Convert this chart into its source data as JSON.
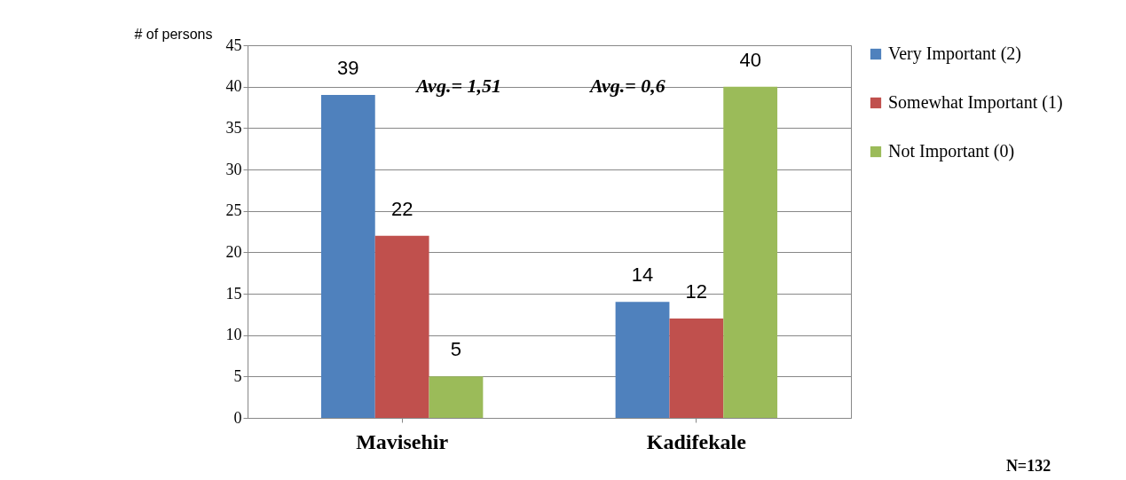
{
  "chart_data": {
    "type": "bar",
    "ylabel": "# of persons",
    "categories": [
      "Mavisehir",
      "Kadifekale"
    ],
    "series": [
      {
        "name": "Very Important (2)",
        "color": "#4f81bd",
        "values": [
          39,
          14
        ]
      },
      {
        "name": "Somewhat Important (1)",
        "color": "#c0504d",
        "values": [
          22,
          12
        ]
      },
      {
        "name": "Not Important (0)",
        "color": "#9bbb59",
        "values": [
          5,
          40
        ]
      }
    ],
    "ylim": [
      0,
      45
    ],
    "yticks": [
      0,
      5,
      10,
      15,
      20,
      25,
      30,
      35,
      40,
      45
    ],
    "grid": "y",
    "legend": "right",
    "data_labels": true,
    "annotations": [
      "Avg.= 1,51",
      "Avg.= 0,6",
      "N=132"
    ]
  }
}
